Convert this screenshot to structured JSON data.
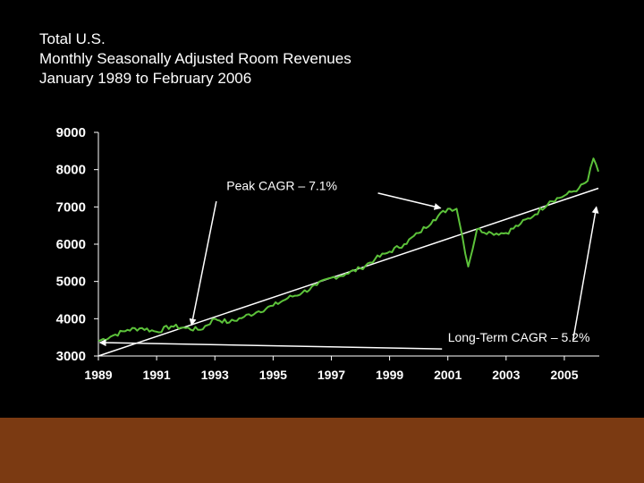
{
  "title_lines": [
    "Total U.S.",
    "Monthly Seasonally Adjusted Room Revenues",
    "January 1989 to February 2006"
  ],
  "colors": {
    "background": "#000000",
    "series": "#5cc23a",
    "trend": "#ffffff",
    "footer_band": "#7b3a12"
  },
  "chart_data": {
    "type": "line",
    "title": "Total U.S. Monthly Seasonally Adjusted Room Revenues January 1989 to February 2006",
    "xlabel": "",
    "ylabel": "",
    "xlim": [
      1989,
      2006.2
    ],
    "ylim": [
      3000,
      9000
    ],
    "x_ticks": [
      1989,
      1991,
      1993,
      1995,
      1997,
      1999,
      2001,
      2003,
      2005
    ],
    "x_tick_labels": [
      "1989",
      "1991",
      "1993",
      "1995",
      "1997",
      "1999",
      "2001",
      "2003",
      "2005"
    ],
    "y_ticks": [
      3000,
      4000,
      5000,
      6000,
      7000,
      8000,
      9000
    ],
    "y_tick_labels": [
      "3000",
      "4000",
      "5000",
      "6000",
      "7000",
      "8000",
      "9000"
    ],
    "grid": false,
    "series": [
      {
        "x": [
          1989.0,
          1989.5,
          1990.0,
          1990.5,
          1991.0,
          1991.5,
          1992.0,
          1992.5,
          1993.0,
          1993.5,
          1994.0,
          1994.5,
          1995.0,
          1995.5,
          1996.0,
          1996.5,
          1997.0,
          1997.5,
          1998.0,
          1998.5,
          1999.0,
          1999.5,
          2000.0,
          2000.5,
          2001.0,
          2001.3,
          2001.5,
          2001.7,
          2002.0,
          2002.5,
          2003.0,
          2003.5,
          2004.0,
          2004.5,
          2005.0,
          2005.5,
          2005.8,
          2006.0,
          2006.17
        ],
        "y": [
          3400,
          3550,
          3700,
          3750,
          3650,
          3800,
          3750,
          3700,
          4000,
          3900,
          4050,
          4200,
          4350,
          4550,
          4700,
          4900,
          5100,
          5200,
          5350,
          5600,
          5800,
          6000,
          6300,
          6650,
          6950,
          6950,
          6200,
          5400,
          6400,
          6300,
          6300,
          6550,
          6800,
          7150,
          7300,
          7500,
          7700,
          8300,
          7950
        ]
      },
      {
        "x": [
          1989.0,
          2006.17
        ],
        "y": [
          3000,
          7500
        ]
      }
    ],
    "annotations": [
      {
        "text": "Peak CAGR – 7.1%",
        "x": 1993.4,
        "y": 7450
      },
      {
        "text": "Long-Term CAGR – 5.2%",
        "x": 2001.0,
        "y": 3380
      }
    ]
  }
}
